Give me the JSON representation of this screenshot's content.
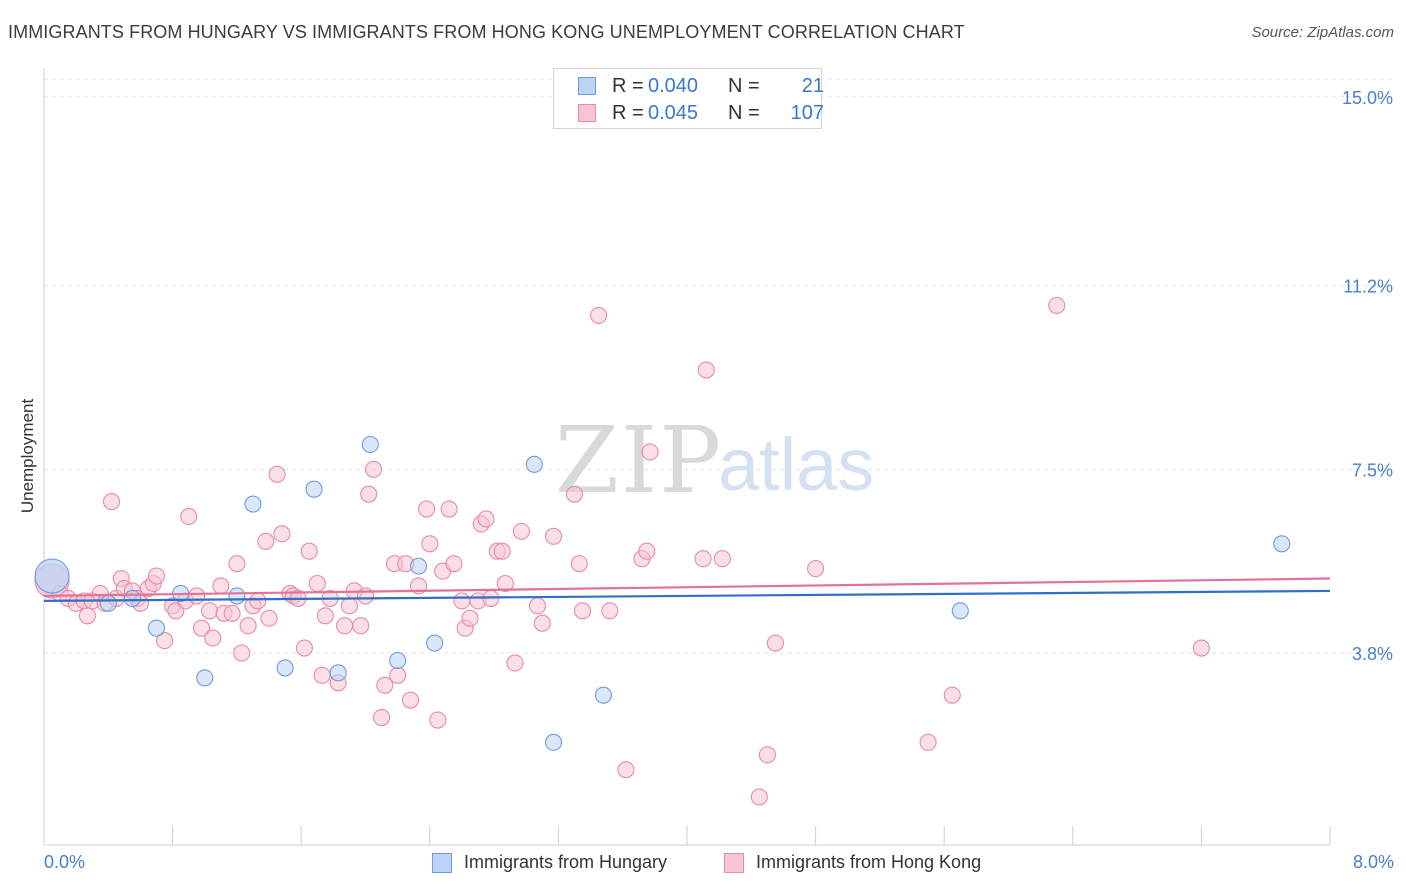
{
  "title": "IMMIGRANTS FROM HUNGARY VS IMMIGRANTS FROM HONG KONG UNEMPLOYMENT CORRELATION CHART",
  "source": "Source: ZipAtlas.com",
  "watermark": {
    "zip": "ZIP",
    "atlas": "atlas"
  },
  "legend": {
    "rows": [
      {
        "r_label": "R =",
        "r_value": "0.040",
        "n_label": "N =",
        "n_value": "21"
      },
      {
        "r_label": "R =",
        "r_value": "0.045",
        "n_label": "N =",
        "n_value": "107"
      }
    ]
  },
  "chart_data": {
    "type": "scatter",
    "xlabel": "",
    "ylabel": "Unemployment",
    "xlim": [
      0,
      8
    ],
    "ylim": [
      0.5,
      15.5
    ],
    "x_tick_labels": {
      "min": "0.0%",
      "max": "8.0%"
    },
    "y_ticks": [
      {
        "value": 3.8,
        "label": "3.8%"
      },
      {
        "value": 7.5,
        "label": "7.5%"
      },
      {
        "value": 11.2,
        "label": "11.2%"
      },
      {
        "value": 15.0,
        "label": "15.0%"
      }
    ],
    "grid": true,
    "legend_position": "top-center",
    "series": [
      {
        "name": "Immigrants from Hungary",
        "color": "#6d9be0",
        "fill": "#bcd3f3",
        "trend": {
          "x": [
            0,
            8
          ],
          "y": [
            4.85,
            5.05
          ],
          "color": "#2f6fc7"
        },
        "points": [
          {
            "x": 0.05,
            "y": 5.35,
            "big": true
          },
          {
            "x": 0.4,
            "y": 4.8
          },
          {
            "x": 0.55,
            "y": 4.9
          },
          {
            "x": 0.7,
            "y": 4.3
          },
          {
            "x": 0.85,
            "y": 5.0
          },
          {
            "x": 1.0,
            "y": 3.3
          },
          {
            "x": 1.2,
            "y": 4.95
          },
          {
            "x": 1.3,
            "y": 6.8
          },
          {
            "x": 1.5,
            "y": 3.5
          },
          {
            "x": 1.68,
            "y": 7.1
          },
          {
            "x": 1.83,
            "y": 3.4
          },
          {
            "x": 2.03,
            "y": 8.0
          },
          {
            "x": 2.2,
            "y": 3.65
          },
          {
            "x": 2.33,
            "y": 5.55
          },
          {
            "x": 2.43,
            "y": 4.0
          },
          {
            "x": 3.05,
            "y": 7.6
          },
          {
            "x": 3.17,
            "y": 2.0
          },
          {
            "x": 3.48,
            "y": 2.95
          },
          {
            "x": 5.7,
            "y": 4.65
          },
          {
            "x": 7.7,
            "y": 6.0
          }
        ]
      },
      {
        "name": "Immigrants from Hong Kong",
        "color": "#e88aa9",
        "fill": "#f7c4d4",
        "trend": {
          "x": [
            0,
            8
          ],
          "y": [
            4.95,
            5.3
          ],
          "color": "#e0739a"
        },
        "points": [
          {
            "x": 0.05,
            "y": 5.25,
            "big": true
          },
          {
            "x": 0.1,
            "y": 5.0
          },
          {
            "x": 0.15,
            "y": 4.9
          },
          {
            "x": 0.2,
            "y": 4.8
          },
          {
            "x": 0.25,
            "y": 4.85
          },
          {
            "x": 0.27,
            "y": 4.55
          },
          {
            "x": 0.3,
            "y": 4.85
          },
          {
            "x": 0.35,
            "y": 5.0
          },
          {
            "x": 0.38,
            "y": 4.8
          },
          {
            "x": 0.42,
            "y": 6.85
          },
          {
            "x": 0.45,
            "y": 4.9
          },
          {
            "x": 0.48,
            "y": 5.3
          },
          {
            "x": 0.5,
            "y": 5.1
          },
          {
            "x": 0.55,
            "y": 5.05
          },
          {
            "x": 0.58,
            "y": 4.9
          },
          {
            "x": 0.6,
            "y": 4.8
          },
          {
            "x": 0.65,
            "y": 5.1
          },
          {
            "x": 0.68,
            "y": 5.2
          },
          {
            "x": 0.7,
            "y": 5.35
          },
          {
            "x": 0.75,
            "y": 4.05
          },
          {
            "x": 0.8,
            "y": 4.75
          },
          {
            "x": 0.82,
            "y": 4.65
          },
          {
            "x": 0.88,
            "y": 4.85
          },
          {
            "x": 0.9,
            "y": 6.55
          },
          {
            "x": 0.95,
            "y": 4.95
          },
          {
            "x": 0.98,
            "y": 4.3
          },
          {
            "x": 1.03,
            "y": 4.65
          },
          {
            "x": 1.05,
            "y": 4.1
          },
          {
            "x": 1.1,
            "y": 5.15
          },
          {
            "x": 1.12,
            "y": 4.6
          },
          {
            "x": 1.17,
            "y": 4.6
          },
          {
            "x": 1.2,
            "y": 5.6
          },
          {
            "x": 1.23,
            "y": 3.8
          },
          {
            "x": 1.27,
            "y": 4.35
          },
          {
            "x": 1.3,
            "y": 4.75
          },
          {
            "x": 1.33,
            "y": 4.85
          },
          {
            "x": 1.38,
            "y": 6.05
          },
          {
            "x": 1.4,
            "y": 4.5
          },
          {
            "x": 1.45,
            "y": 7.4
          },
          {
            "x": 1.48,
            "y": 6.2
          },
          {
            "x": 1.53,
            "y": 5.0
          },
          {
            "x": 1.55,
            "y": 4.95
          },
          {
            "x": 1.58,
            "y": 4.9
          },
          {
            "x": 1.62,
            "y": 3.9
          },
          {
            "x": 1.65,
            "y": 5.85
          },
          {
            "x": 1.7,
            "y": 5.2
          },
          {
            "x": 1.73,
            "y": 3.35
          },
          {
            "x": 1.75,
            "y": 4.55
          },
          {
            "x": 1.78,
            "y": 4.9
          },
          {
            "x": 1.83,
            "y": 3.2
          },
          {
            "x": 1.87,
            "y": 4.35
          },
          {
            "x": 1.9,
            "y": 4.75
          },
          {
            "x": 1.93,
            "y": 5.05
          },
          {
            "x": 1.97,
            "y": 4.35
          },
          {
            "x": 2.0,
            "y": 4.95
          },
          {
            "x": 2.02,
            "y": 7.0
          },
          {
            "x": 2.05,
            "y": 7.5
          },
          {
            "x": 2.1,
            "y": 2.5
          },
          {
            "x": 2.12,
            "y": 3.15
          },
          {
            "x": 2.18,
            "y": 5.6
          },
          {
            "x": 2.2,
            "y": 3.35
          },
          {
            "x": 2.25,
            "y": 5.6
          },
          {
            "x": 2.28,
            "y": 2.85
          },
          {
            "x": 2.33,
            "y": 5.15
          },
          {
            "x": 2.38,
            "y": 6.7
          },
          {
            "x": 2.4,
            "y": 6.0
          },
          {
            "x": 2.45,
            "y": 2.45
          },
          {
            "x": 2.48,
            "y": 5.45
          },
          {
            "x": 2.52,
            "y": 6.7
          },
          {
            "x": 2.55,
            "y": 5.6
          },
          {
            "x": 2.6,
            "y": 4.85
          },
          {
            "x": 2.62,
            "y": 4.3
          },
          {
            "x": 2.65,
            "y": 4.5
          },
          {
            "x": 2.7,
            "y": 4.85
          },
          {
            "x": 2.72,
            "y": 6.4
          },
          {
            "x": 2.75,
            "y": 6.5
          },
          {
            "x": 2.78,
            "y": 4.9
          },
          {
            "x": 2.82,
            "y": 5.85
          },
          {
            "x": 2.85,
            "y": 5.85
          },
          {
            "x": 2.87,
            "y": 5.2
          },
          {
            "x": 2.93,
            "y": 3.6
          },
          {
            "x": 2.97,
            "y": 6.25
          },
          {
            "x": 3.07,
            "y": 4.75
          },
          {
            "x": 3.1,
            "y": 4.4
          },
          {
            "x": 3.17,
            "y": 6.15
          },
          {
            "x": 3.3,
            "y": 7.0
          },
          {
            "x": 3.33,
            "y": 5.6
          },
          {
            "x": 3.35,
            "y": 4.65
          },
          {
            "x": 3.45,
            "y": 10.6
          },
          {
            "x": 3.52,
            "y": 4.65
          },
          {
            "x": 3.62,
            "y": 1.45
          },
          {
            "x": 3.72,
            "y": 5.7
          },
          {
            "x": 3.75,
            "y": 5.85
          },
          {
            "x": 3.77,
            "y": 7.85
          },
          {
            "x": 4.1,
            "y": 5.7
          },
          {
            "x": 4.12,
            "y": 9.5
          },
          {
            "x": 4.22,
            "y": 5.7
          },
          {
            "x": 4.45,
            "y": 0.9
          },
          {
            "x": 4.5,
            "y": 1.75
          },
          {
            "x": 4.55,
            "y": 4.0
          },
          {
            "x": 4.8,
            "y": 5.5
          },
          {
            "x": 5.5,
            "y": 2.0
          },
          {
            "x": 5.65,
            "y": 2.95
          },
          {
            "x": 6.3,
            "y": 10.8
          },
          {
            "x": 7.2,
            "y": 3.9
          }
        ]
      }
    ]
  }
}
